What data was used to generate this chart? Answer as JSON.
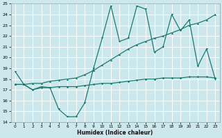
{
  "xlabel": "Humidex (Indice chaleur)",
  "xlim": [
    -0.5,
    23.5
  ],
  "ylim": [
    14,
    25
  ],
  "yticks": [
    14,
    15,
    16,
    17,
    18,
    19,
    20,
    21,
    22,
    23,
    24,
    25
  ],
  "xticks": [
    0,
    1,
    2,
    3,
    4,
    5,
    6,
    7,
    8,
    9,
    10,
    11,
    12,
    13,
    14,
    15,
    16,
    17,
    18,
    19,
    20,
    21,
    22,
    23
  ],
  "bg_color": "#cde8ec",
  "grid_color": "#ffffff",
  "line_color": "#1a7a6e",
  "line1_x": [
    0,
    1,
    2,
    3,
    4,
    5,
    6,
    7,
    8,
    9,
    10,
    11,
    12,
    13,
    14,
    15,
    16,
    17,
    18,
    19,
    20,
    21,
    22,
    23
  ],
  "line1_y": [
    18.7,
    17.5,
    17.0,
    17.3,
    17.2,
    15.2,
    14.5,
    14.5,
    15.8,
    19.0,
    21.8,
    24.8,
    21.5,
    21.8,
    24.8,
    24.5,
    20.5,
    21.0,
    24.0,
    22.5,
    23.5,
    19.2,
    20.8,
    18.0
  ],
  "line2_x": [
    0,
    1,
    2,
    3,
    4,
    5,
    6,
    7,
    8,
    9,
    10,
    11,
    12,
    13,
    14,
    15,
    16,
    17,
    18,
    19,
    20,
    21,
    22,
    23
  ],
  "line2_y": [
    17.5,
    17.5,
    17.0,
    17.2,
    17.2,
    17.3,
    17.3,
    17.3,
    17.4,
    17.5,
    17.6,
    17.6,
    17.7,
    17.8,
    17.9,
    18.0,
    18.0,
    18.1,
    18.1,
    18.1,
    18.2,
    18.2,
    18.2,
    18.1
  ],
  "line3_x": [
    0,
    1,
    2,
    3,
    4,
    5,
    6,
    7,
    8,
    9,
    10,
    11,
    12,
    13,
    14,
    15,
    16,
    17,
    18,
    19,
    20,
    21,
    22,
    23
  ],
  "line3_y": [
    17.5,
    17.5,
    17.6,
    17.6,
    17.8,
    17.9,
    18.0,
    18.1,
    18.4,
    18.8,
    19.3,
    19.8,
    20.3,
    20.8,
    21.2,
    21.5,
    21.8,
    22.0,
    22.3,
    22.6,
    23.0,
    23.2,
    23.5,
    24.0
  ]
}
